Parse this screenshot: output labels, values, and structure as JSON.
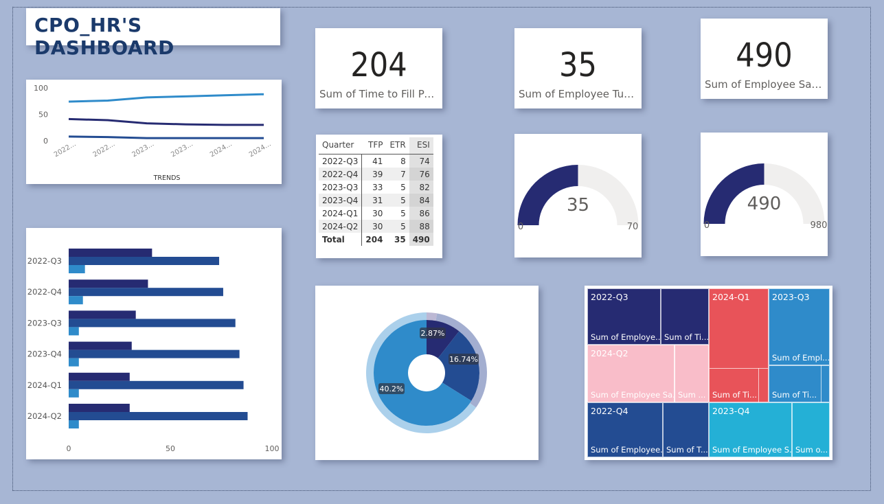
{
  "header": {
    "title": "CPO_HR'S DASHBOARD"
  },
  "kpis": [
    {
      "value": "204",
      "label": "Sum of Time to Fill Posi..."
    },
    {
      "value": "35",
      "label": "Sum of Employee Turn..."
    },
    {
      "value": "490",
      "label": "Sum of Employee Satisf..."
    }
  ],
  "colors": {
    "navy": "#262b72",
    "blue": "#234c92",
    "lightblue": "#2f8bca",
    "teal": "#24b0d6",
    "red": "#e85359",
    "pink": "#f9bdc9",
    "gray": "#f0efee",
    "line_top": "#2f8bca",
    "line_mid": "#262b72",
    "line_bot": "#234c92"
  },
  "trend_chart": {
    "type": "line",
    "xlabel": "TRENDS",
    "x_ticks": [
      "2022...",
      "2022...",
      "2023...",
      "2023...",
      "2024...",
      "2024..."
    ],
    "y_ticks": [
      "100",
      "50",
      "0"
    ],
    "ylim": [
      0,
      100
    ],
    "series": [
      {
        "values": [
          74,
          76,
          82,
          84,
          86,
          88
        ]
      },
      {
        "values": [
          41,
          39,
          33,
          31,
          30,
          30
        ]
      },
      {
        "values": [
          8,
          7,
          5,
          5,
          5,
          5
        ]
      }
    ]
  },
  "chart_data": {
    "type": "bar",
    "categories": [
      "2022-Q3",
      "2022-Q4",
      "2023-Q3",
      "2023-Q4",
      "2024-Q1",
      "2024-Q2"
    ],
    "xlim": [
      0,
      100
    ],
    "x_ticks": [
      "0",
      "50",
      "100"
    ],
    "series": [
      {
        "values": [
          41,
          39,
          33,
          31,
          30,
          30
        ]
      },
      {
        "values": [
          74,
          76,
          82,
          84,
          86,
          88
        ]
      },
      {
        "values": [
          8,
          7,
          5,
          5,
          5,
          5
        ]
      }
    ]
  },
  "matrix": {
    "headers": [
      "Quarter",
      "TFP",
      "ETR",
      "ESI"
    ],
    "rows": [
      [
        "2022-Q3",
        "41",
        "8",
        "74"
      ],
      [
        "2022-Q4",
        "39",
        "7",
        "76"
      ],
      [
        "2023-Q3",
        "33",
        "5",
        "82"
      ],
      [
        "2023-Q4",
        "31",
        "5",
        "84"
      ],
      [
        "2024-Q1",
        "30",
        "5",
        "86"
      ],
      [
        "2024-Q2",
        "30",
        "5",
        "88"
      ]
    ],
    "total": [
      "Total",
      "204",
      "35",
      "490"
    ]
  },
  "gauges": [
    {
      "value": 35,
      "value_label": "35",
      "min_label": "0",
      "max": 70,
      "max_label": "70"
    },
    {
      "value": 490,
      "value_label": "490",
      "min_label": "0",
      "max": 980,
      "max_label": "980"
    }
  ],
  "donut": {
    "type": "pie",
    "slices": [
      {
        "label": "2.87%",
        "value": 2.87
      },
      {
        "label": "16.74%",
        "value": 16.74
      },
      {
        "label": "40.2%",
        "value": 40.2
      }
    ]
  },
  "treemap": {
    "cells": [
      {
        "header": "2022-Q3",
        "sub": "Sum of Employe...",
        "color": "#262b72"
      },
      {
        "header": "",
        "sub": "Sum of Ti...",
        "color": "#262b72"
      },
      {
        "header": "2024-Q1",
        "sub": "Sum of Empl...",
        "color": "#e85359"
      },
      {
        "header": "",
        "sub": "Sum of Ti...",
        "color": "#e85359"
      },
      {
        "header": "2023-Q3",
        "sub": "Sum of Empl...",
        "color": "#2f8bca"
      },
      {
        "header": "",
        "sub": "Sum of Ti...",
        "color": "#2f8bca"
      },
      {
        "header": "2024-Q2",
        "sub": "Sum of Employee Sa...",
        "color": "#f9bdc9"
      },
      {
        "header": "",
        "sub": "Sum ...",
        "color": "#f9bdc9"
      },
      {
        "header": "2022-Q4",
        "sub": "Sum of Employee...",
        "color": "#234c92"
      },
      {
        "header": "",
        "sub": "Sum of T...",
        "color": "#234c92"
      },
      {
        "header": "2023-Q4",
        "sub": "Sum of Employee S...",
        "color": "#24b0d6"
      },
      {
        "header": "",
        "sub": "Sum o...",
        "color": "#24b0d6"
      }
    ]
  }
}
